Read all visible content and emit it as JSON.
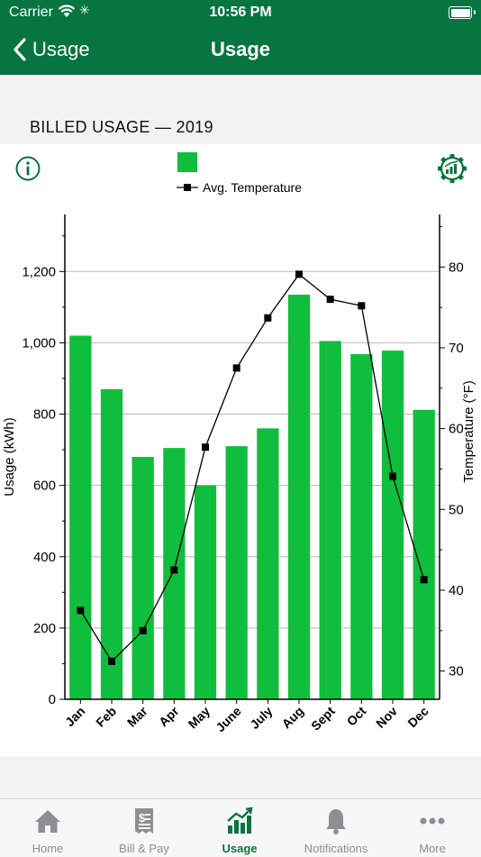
{
  "status_bar": {
    "carrier": "Carrier",
    "time": "10:56 PM"
  },
  "nav": {
    "back_label": "Usage",
    "title": "Usage"
  },
  "section": {
    "title": "BILLED USAGE — 2019"
  },
  "colors": {
    "brand": "#07753f",
    "bar": "#0fbe3c",
    "line": "#000000",
    "tab_inactive": "#8e8e93"
  },
  "icons": {
    "info": "info-circle-icon",
    "settings": "chart-gear-icon"
  },
  "chart_data": {
    "type": "bar",
    "categories": [
      "Jan",
      "Feb",
      "Mar",
      "Apr",
      "May",
      "June",
      "July",
      "Aug",
      "Sept",
      "Oct",
      "Nov",
      "Dec"
    ],
    "series": [
      {
        "name": "",
        "type": "bar",
        "axis": "left",
        "values": [
          1020,
          870,
          680,
          705,
          600,
          710,
          760,
          1135,
          1005,
          968,
          978,
          812
        ]
      },
      {
        "name": "Avg. Temperature",
        "type": "line",
        "axis": "right",
        "values": [
          37.5,
          31.2,
          35,
          42.5,
          57.7,
          67.5,
          73.7,
          79.1,
          76,
          75.2,
          54.1,
          41.3
        ]
      }
    ],
    "ylabel": "Usage (kWh)",
    "ylim": [
      0,
      1360
    ],
    "yticks": [
      0,
      200,
      400,
      600,
      800,
      1000,
      1200
    ],
    "ytick_labels": [
      "0",
      "200",
      "400",
      "600",
      "800",
      "1,000",
      "1,200"
    ],
    "y2label": "Temperature (°F)",
    "y2lim": [
      26.5,
      86.5
    ],
    "y2ticks": [
      30,
      40,
      50,
      60,
      70,
      80
    ],
    "grid": true,
    "legend": "top-center"
  },
  "tabs": [
    {
      "label": "Home",
      "icon": "home-icon",
      "active": false
    },
    {
      "label": "Bill & Pay",
      "icon": "bill-icon",
      "active": false
    },
    {
      "label": "Usage",
      "icon": "usage-chart-icon",
      "active": true
    },
    {
      "label": "Notifications",
      "icon": "bell-icon",
      "active": false
    },
    {
      "label": "More",
      "icon": "more-dots-icon",
      "active": false
    }
  ]
}
